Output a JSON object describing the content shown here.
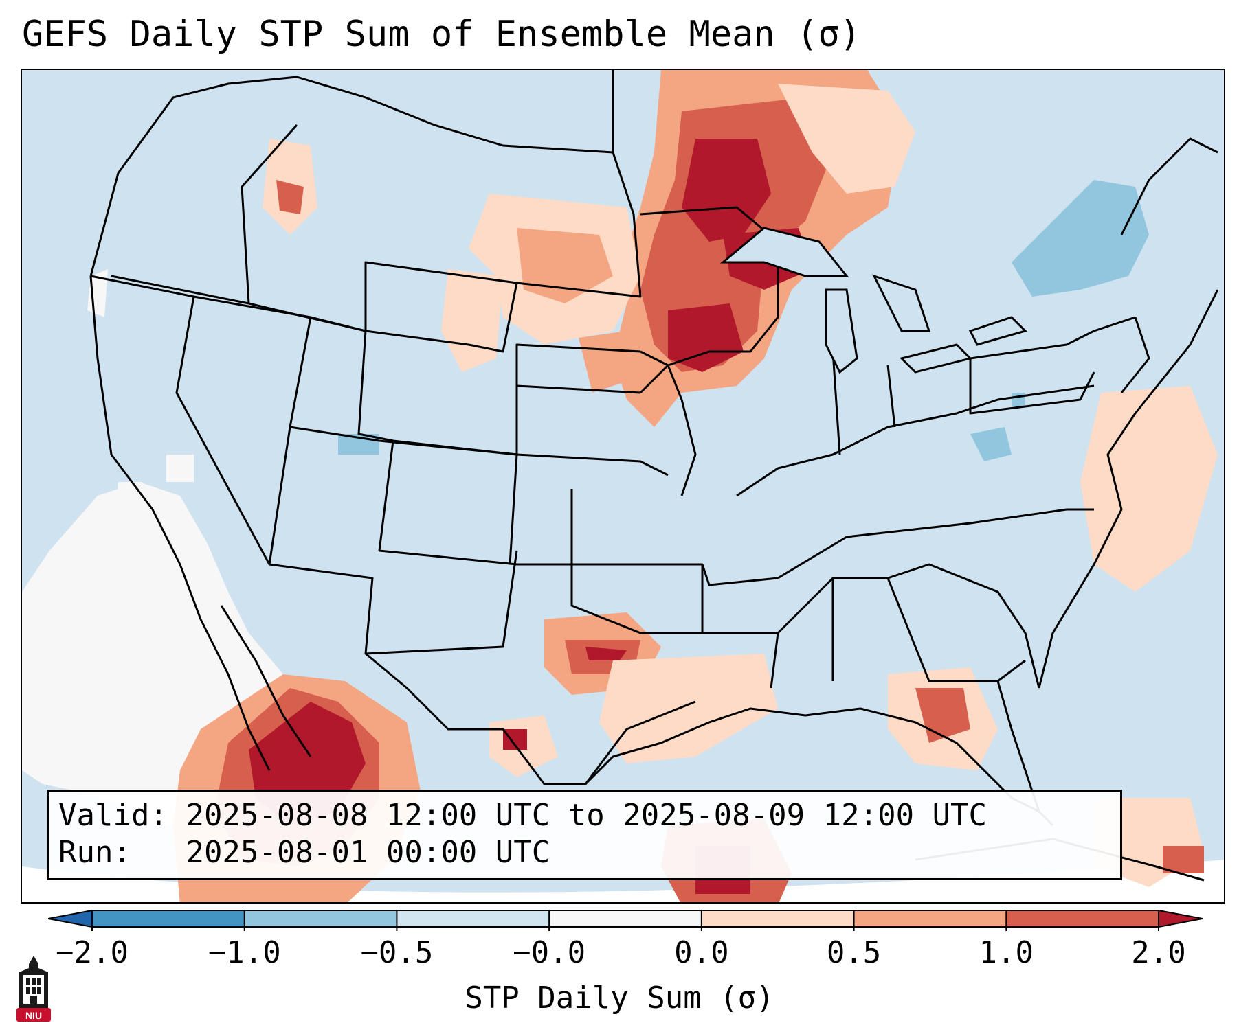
{
  "title": "GEFS Daily STP Sum of Ensemble Mean (σ)",
  "info": {
    "valid_label": "Valid:",
    "valid_value": "2025-08-08 12:00 UTC to 2025-08-09 12:00 UTC",
    "run_label": "Run:",
    "run_value": "2025-08-01 00:00 UTC"
  },
  "colorbar": {
    "label": "STP Daily Sum (σ)",
    "ticks": [
      "−2.0",
      "−1.0",
      "−0.5",
      "−0.0",
      "0.0",
      "0.5",
      "1.0",
      "2.0"
    ],
    "bins": [
      {
        "range": "< -2.0",
        "color": "#2166ac"
      },
      {
        "range": "-2.0 to -1.0",
        "color": "#4393c3"
      },
      {
        "range": "-1.0 to -0.5",
        "color": "#92c5de"
      },
      {
        "range": "-0.5 to -0.0",
        "color": "#d1e5f0"
      },
      {
        "range": "-0.0 to 0.0",
        "color": "#f7f7f7"
      },
      {
        "range": "0.0 to 0.5",
        "color": "#fddbc7"
      },
      {
        "range": "0.5 to 1.0",
        "color": "#f4a582"
      },
      {
        "range": "1.0 to 2.0",
        "color": "#d6604d"
      },
      {
        "range": "> 2.0",
        "color": "#b2182b"
      }
    ]
  },
  "logo": {
    "text": "NIU",
    "icon": "university-tower-icon"
  }
}
